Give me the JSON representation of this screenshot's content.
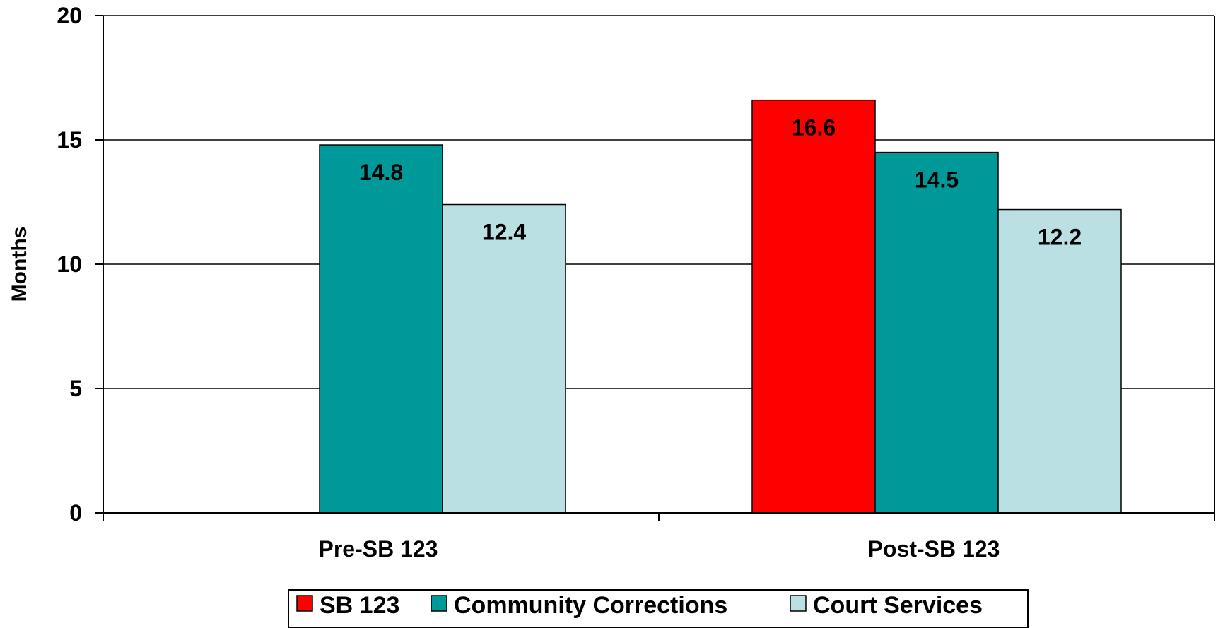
{
  "chart_data": {
    "type": "bar",
    "categories": [
      "Pre-SB 123",
      "Post-SB 123"
    ],
    "series": [
      {
        "name": "SB 123",
        "color": "#FF0000",
        "values": [
          null,
          16.6
        ]
      },
      {
        "name": "Community Corrections",
        "color": "#009999",
        "values": [
          14.8,
          14.5
        ]
      },
      {
        "name": "Court Services",
        "color": "#BBE0E3",
        "values": [
          12.4,
          12.2
        ]
      }
    ],
    "ylabel": "Months",
    "xlabel": "",
    "ylim": [
      0,
      20
    ],
    "yticks": [
      0,
      5,
      10,
      15,
      20
    ],
    "data_labels": [
      "16.6",
      "14.8",
      "14.5",
      "12.4",
      "12.2"
    ],
    "grid": true,
    "legend_position": "bottom"
  }
}
